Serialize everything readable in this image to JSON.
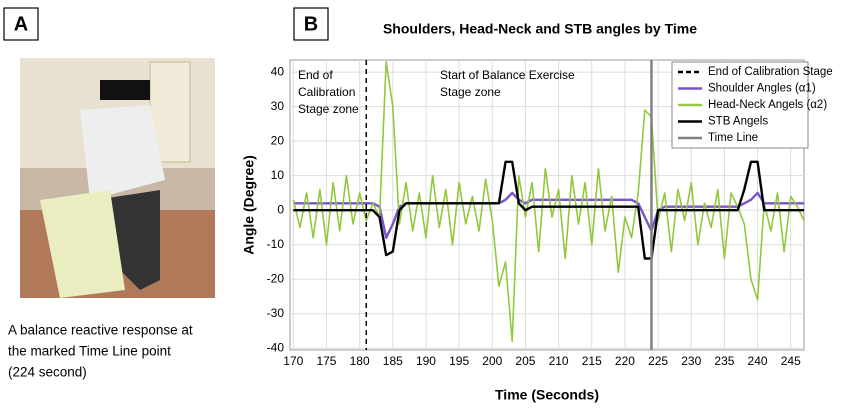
{
  "panel_a": {
    "label": "A",
    "caption": [
      "A balance reactive response at",
      "the marked Time Line point",
      "(224 second)"
    ]
  },
  "chart_data": {
    "type": "line",
    "panel_label": "B",
    "title": "Shoulders, Head-Neck and STB angles by Time",
    "x_label": "Time (Seconds)",
    "y_label": "Angle (Degree)",
    "annotations": [
      [
        "End of",
        "Calibration",
        "Stage zone"
      ],
      [
        "Start of Balance Exercise",
        "Stage zone"
      ]
    ],
    "x": [
      170,
      171,
      172,
      173,
      174,
      175,
      176,
      177,
      178,
      179,
      180,
      181,
      182,
      183,
      184,
      185,
      186,
      187,
      188,
      189,
      190,
      191,
      192,
      193,
      194,
      195,
      196,
      197,
      198,
      199,
      200,
      201,
      202,
      203,
      204,
      205,
      206,
      207,
      208,
      209,
      210,
      211,
      212,
      213,
      214,
      215,
      216,
      217,
      218,
      219,
      220,
      221,
      222,
      223,
      224,
      225,
      226,
      227,
      228,
      229,
      230,
      231,
      232,
      233,
      234,
      235,
      236,
      237,
      238,
      239,
      240,
      241,
      242,
      243,
      244,
      245,
      246,
      247
    ],
    "series": [
      {
        "name": "Shoulder Angles (α1)",
        "color": "#7b52c9",
        "values": [
          2,
          2,
          2,
          2,
          2,
          2,
          2,
          2,
          2,
          2,
          2,
          2,
          2,
          1,
          -8,
          -4,
          1,
          2,
          2,
          2,
          2,
          2,
          2,
          2,
          2,
          2,
          2,
          2,
          2,
          2,
          2,
          2,
          3,
          5,
          3,
          2,
          3,
          3,
          3,
          3,
          3,
          3,
          3,
          3,
          3,
          3,
          3,
          3,
          3,
          3,
          3,
          3,
          2,
          -2,
          -6,
          0,
          1,
          1,
          1,
          1,
          1,
          1,
          1,
          1,
          1,
          1,
          1,
          1,
          2,
          3,
          5,
          2,
          2,
          2,
          2,
          2,
          2,
          2
        ]
      },
      {
        "name": "Head-Neck Angels (α2)",
        "color": "#92c83e",
        "values": [
          3,
          -5,
          5,
          -8,
          6,
          -10,
          8,
          -6,
          10,
          -4,
          5,
          -3,
          2,
          -2,
          43,
          30,
          -4,
          8,
          -6,
          5,
          -8,
          10,
          -5,
          6,
          -10,
          8,
          -4,
          4,
          -6,
          9,
          -3,
          -22,
          -15,
          -38,
          10,
          -2,
          8,
          -12,
          12,
          -2,
          6,
          -14,
          10,
          -4,
          8,
          -10,
          12,
          -6,
          4,
          -18,
          -2,
          -8,
          5,
          29,
          27,
          -3,
          5,
          -12,
          6,
          -3,
          8,
          -10,
          2,
          -5,
          6,
          -14,
          5,
          1,
          -4,
          -20,
          -26,
          2,
          -6,
          5,
          -12,
          4,
          1,
          -3
        ]
      },
      {
        "name": "STB Angels",
        "color": "#000000",
        "values": [
          0,
          0,
          0,
          0,
          0,
          0,
          0,
          0,
          0,
          0,
          0,
          0,
          0,
          -2,
          -13,
          -12,
          0,
          2,
          2,
          2,
          2,
          2,
          2,
          2,
          2,
          2,
          2,
          2,
          2,
          2,
          2,
          2,
          14,
          14,
          2,
          0,
          1,
          1,
          1,
          1,
          1,
          1,
          1,
          1,
          1,
          1,
          1,
          1,
          1,
          1,
          1,
          1,
          1,
          -14,
          -14,
          0,
          0,
          0,
          0,
          0,
          0,
          0,
          0,
          0,
          0,
          0,
          0,
          0,
          6,
          14,
          14,
          0,
          0,
          0,
          0,
          0,
          0,
          0
        ]
      }
    ],
    "vlines": [
      {
        "name": "End of Calibration Stage",
        "x": 181,
        "color": "#000000",
        "dashed": true
      },
      {
        "name": "Time Line",
        "x": 224,
        "color": "#808080",
        "dashed": false
      }
    ],
    "xlim": [
      169.5,
      247
    ],
    "xticks": [
      170,
      175,
      180,
      185,
      190,
      195,
      200,
      205,
      210,
      215,
      220,
      225,
      230,
      235,
      240,
      245
    ],
    "ylim": [
      -40.5,
      43.5
    ],
    "yticks": [
      -40,
      -30,
      -20,
      -10,
      0,
      10,
      20,
      30,
      40
    ],
    "grid": true
  }
}
